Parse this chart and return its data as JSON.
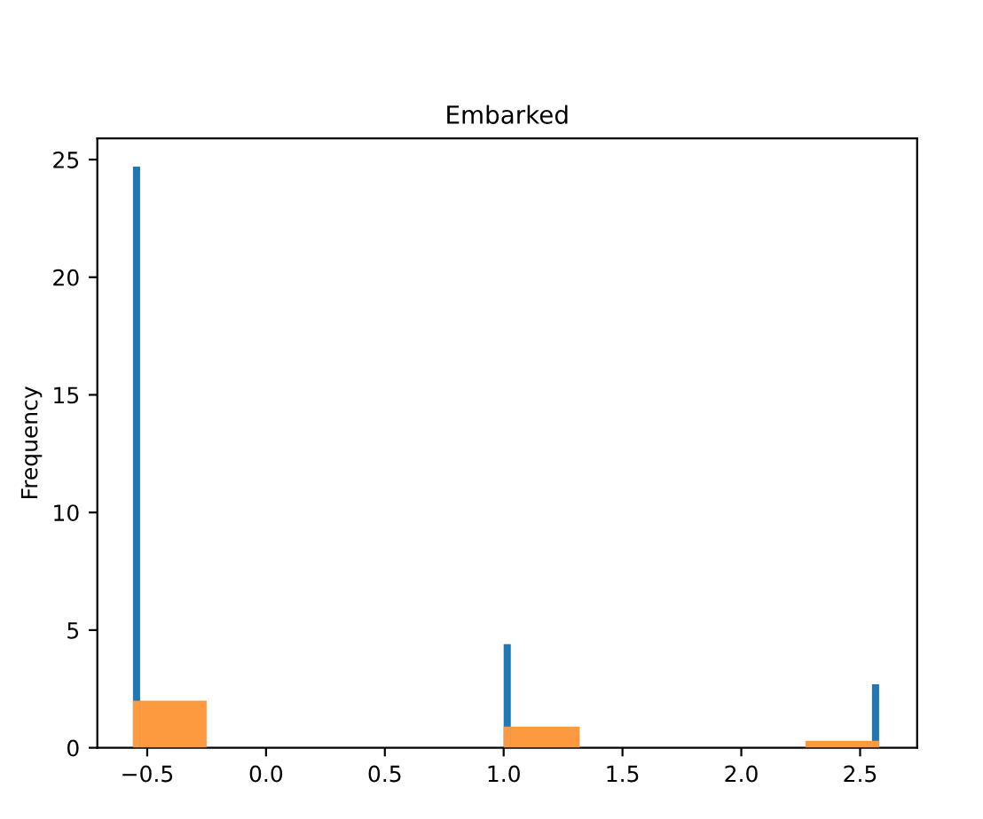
{
  "chart_data": {
    "type": "histogram",
    "title": "Embarked",
    "ylabel": "Frequency",
    "bins": [
      -0.56,
      -0.53,
      -0.25,
      1.0,
      1.03,
      1.32,
      2.27,
      2.55,
      2.58
    ],
    "series": [
      {
        "color": "#1f77b4",
        "values": [
          24.7,
          0,
          0,
          4.4,
          0,
          0,
          0,
          2.7
        ]
      },
      {
        "color": "#fd9a3f",
        "values": [
          2.0,
          2.0,
          0,
          0.9,
          0.9,
          0,
          0.3,
          0.3
        ]
      }
    ],
    "xlim": [
      -0.71,
      2.74
    ],
    "xticks": [
      {
        "value": -0.5,
        "label": "−0.5"
      },
      {
        "value": 0,
        "label": "0.0"
      },
      {
        "value": 0.5,
        "label": "0.5"
      },
      {
        "value": 1,
        "label": "1.0"
      },
      {
        "value": 1.5,
        "label": "1.5"
      },
      {
        "value": 2,
        "label": "2.0"
      },
      {
        "value": 2.5,
        "label": "2.5"
      }
    ],
    "ylim": [
      0,
      25.9
    ],
    "yticks": [
      0,
      5,
      10,
      15,
      20,
      25
    ],
    "grid": false
  }
}
